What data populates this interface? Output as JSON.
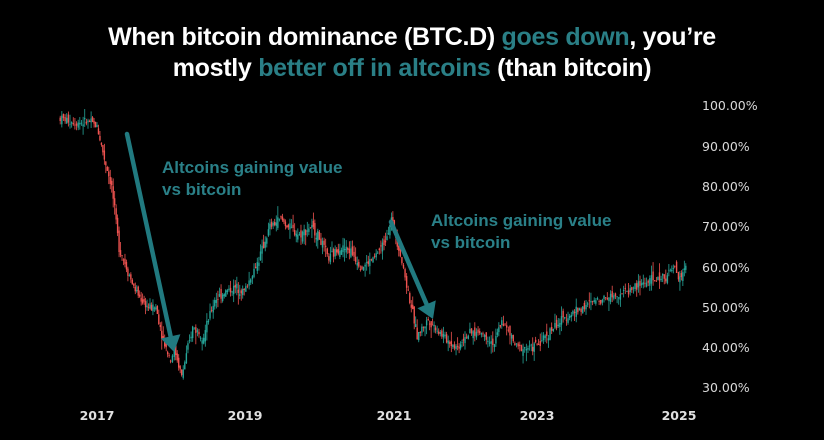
{
  "title": {
    "line1_pre": "When bitcoin dominance (BTC.D) ",
    "line1_hl": "goes down",
    "line1_post": ", you’re",
    "line2_pre": "mostly ",
    "line2_hl": "better off in altcoins",
    "line2_post": " (than bitcoin)"
  },
  "colors": {
    "background": "#000000",
    "highlight": "#2a7f86",
    "up": "#26a69a",
    "down": "#ef5350",
    "arrow": "#217a80"
  },
  "annotations": [
    {
      "line1": "Altcoins gaining value",
      "line2": "vs bitcoin"
    },
    {
      "line1": "Altcoins gaining value",
      "line2": "vs bitcoin"
    }
  ],
  "chart_data": {
    "type": "line",
    "title": "When bitcoin dominance (BTC.D) goes down, you’re mostly better off in altcoins (than bitcoin)",
    "xlabel": "",
    "ylabel": "",
    "series": [
      {
        "name": "BTC.D",
        "x": [
          2016.5,
          2016.7,
          2016.9,
          2017.0,
          2017.1,
          2017.2,
          2017.3,
          2017.4,
          2017.5,
          2017.6,
          2017.7,
          2017.8,
          2017.9,
          2018.0,
          2018.05,
          2018.15,
          2018.3,
          2018.45,
          2018.6,
          2018.75,
          2018.9,
          2019.0,
          2019.2,
          2019.35,
          2019.5,
          2019.6,
          2019.75,
          2019.9,
          2020.0,
          2020.15,
          2020.3,
          2020.45,
          2020.6,
          2020.75,
          2020.9,
          2021.0,
          2021.1,
          2021.25,
          2021.35,
          2021.5,
          2021.6,
          2021.75,
          2021.9,
          2022.0,
          2022.2,
          2022.4,
          2022.5,
          2022.7,
          2022.9,
          2023.0,
          2023.2,
          2023.4,
          2023.6,
          2023.8,
          2024.0,
          2024.2,
          2024.4,
          2024.6,
          2024.75,
          2024.85,
          2024.9,
          2025.0
        ],
        "values": [
          97,
          96,
          96,
          95,
          87,
          80,
          65,
          60,
          55,
          52,
          50,
          50,
          42,
          37,
          40,
          33,
          45,
          43,
          52,
          54,
          55,
          54,
          62,
          70,
          72,
          70,
          68,
          70,
          68,
          62,
          65,
          64,
          60,
          62,
          66,
          72,
          65,
          52,
          43,
          47,
          45,
          42,
          40,
          43,
          44,
          41,
          47,
          40,
          40,
          41,
          45,
          48,
          50,
          52,
          53,
          54,
          56,
          57,
          58,
          60,
          57,
          60
        ]
      }
    ],
    "ylim": [
      30,
      100
    ],
    "yticks": [
      "100.00%",
      "90.00%",
      "80.00%",
      "70.00%",
      "60.00%",
      "50.00%",
      "40.00%",
      "30.00%"
    ],
    "xticks": [
      "2017",
      "2019",
      "2021",
      "2023",
      "2025"
    ],
    "grid": false,
    "annotations": [
      {
        "text": "Altcoins gaining value vs bitcoin",
        "arrow_from": [
          2017.4,
          93
        ],
        "arrow_to": [
          2018.05,
          38
        ]
      },
      {
        "text": "Altcoins gaining value vs bitcoin",
        "arrow_from": [
          2021.0,
          71
        ],
        "arrow_to": [
          2021.55,
          47
        ]
      }
    ]
  },
  "axis": {
    "y": [
      "100.00%",
      "90.00%",
      "80.00%",
      "70.00%",
      "60.00%",
      "50.00%",
      "40.00%",
      "30.00%"
    ],
    "x": [
      "2017",
      "2019",
      "2021",
      "2023",
      "2025"
    ]
  }
}
